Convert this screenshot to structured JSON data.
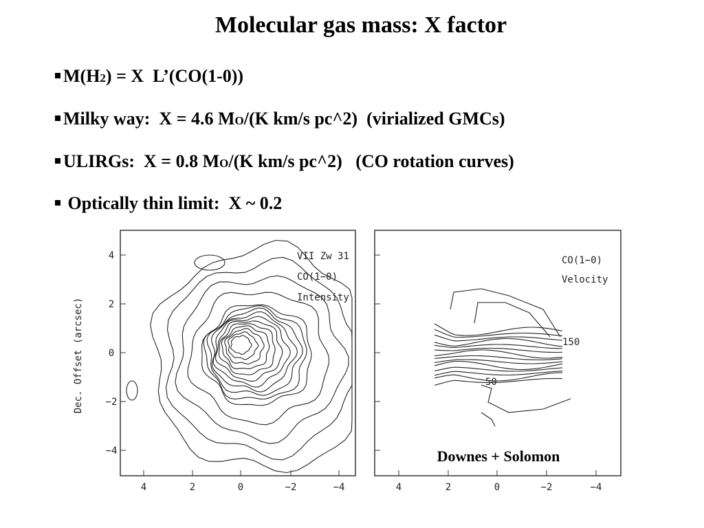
{
  "title": "Molecular gas mass: X factor",
  "bullets": [
    [
      "M(H",
      "2",
      ") = X  L’(CO(1-0))"
    ],
    [
      "Milky way:  X = 4.6 M",
      "O",
      "/(K km/s pc^2)  (virialized GMCs)"
    ],
    [
      "ULIRGs:  X = 0.8 M",
      "O",
      "/(K km/s pc^2)   (CO rotation curves)"
    ],
    [
      " Optically thin limit:  X ~ 0.2"
    ]
  ],
  "figure": {
    "ylabel": "Dec. Offset (arcsec)",
    "left_panel": {
      "labels": [
        "VII Zw 31",
        "CO(1−0)",
        "Intensity"
      ],
      "yticks": [
        "4",
        "2",
        "0",
        "−2",
        "−4"
      ],
      "xticks": [
        "4",
        "2",
        "0",
        "−2",
        "−4"
      ]
    },
    "right_panel": {
      "labels": [
        "CO(1−0)",
        "Velocity"
      ],
      "contour_labels": [
        "150",
        "50"
      ],
      "xticks": [
        "4",
        "2",
        "0",
        "−2",
        "−4"
      ]
    },
    "credit": "Downes + Solomon"
  }
}
